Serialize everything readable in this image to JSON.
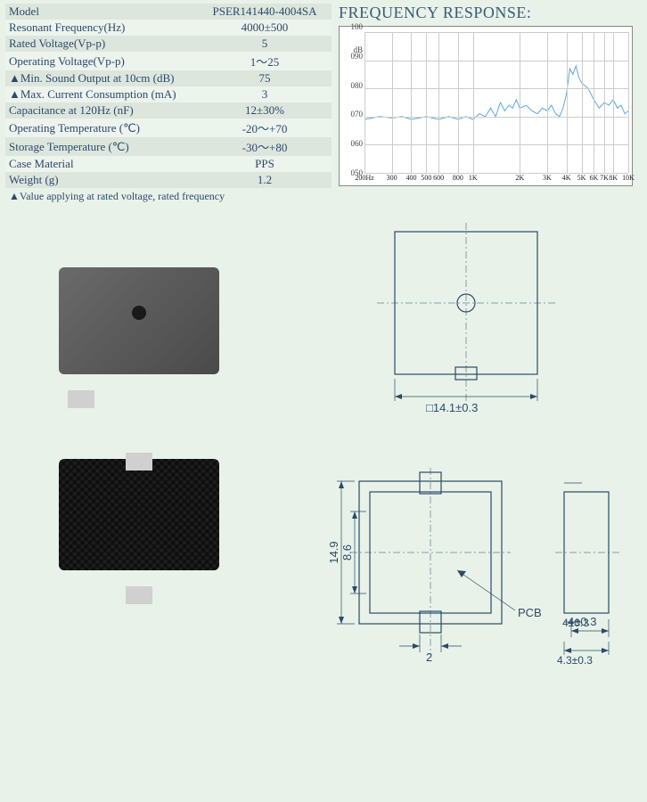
{
  "specs": {
    "rows": [
      {
        "label": "Model",
        "value": "PSER141440-4004SA"
      },
      {
        "label": "Resonant Frequency(Hz)",
        "value": "4000±500"
      },
      {
        "label": "Rated Voltage(Vp-p)",
        "value": "5"
      },
      {
        "label": "Operating Voltage(Vp-p)",
        "value": "1～25"
      },
      {
        "label": "▲Min. Sound Output at 10cm (dB)",
        "value": "75"
      },
      {
        "label": "▲Max. Current Consumption (mA)",
        "value": "3"
      },
      {
        "label": "Capacitance at 120Hz (nF)",
        "value": "12±30%"
      },
      {
        "label": "Operating Temperature (℃)",
        "value": "-20～+70"
      },
      {
        "label": "Storage Temperature (℃)",
        "value": "-30～+80"
      },
      {
        "label": "Case Material",
        "value": "PPS"
      },
      {
        "label": "Weight (g)",
        "value": "1.2"
      }
    ],
    "footnote": "▲Value applying at rated voltage, rated frequency"
  },
  "chart": {
    "title": "FREQUENCY RESPONSE:",
    "y_label": "dB",
    "y_min": 50,
    "y_max": 100,
    "y_ticks": [
      50,
      60,
      70,
      80,
      90,
      100
    ],
    "y_tick_labels": [
      "050",
      "060",
      "070",
      "080",
      "090",
      "100"
    ],
    "x_ticks_log": [
      200,
      300,
      400,
      500,
      600,
      800,
      1000,
      2000,
      3000,
      4000,
      5000,
      6000,
      7000,
      8000,
      10000
    ],
    "x_tick_labels": [
      "200Hz",
      "300",
      "400",
      "500",
      "600",
      "800",
      "1K",
      "2K",
      "3K",
      "4K",
      "5K",
      "6K",
      "7K",
      "8K",
      "10K"
    ],
    "line_color": "#5aa8d8",
    "background_color": "#ffffff",
    "data_points": [
      [
        200,
        69
      ],
      [
        250,
        70
      ],
      [
        300,
        69.5
      ],
      [
        350,
        70
      ],
      [
        400,
        69
      ],
      [
        450,
        69.5
      ],
      [
        500,
        70
      ],
      [
        600,
        69
      ],
      [
        700,
        70
      ],
      [
        800,
        69
      ],
      [
        900,
        70
      ],
      [
        1000,
        69
      ],
      [
        1100,
        71
      ],
      [
        1200,
        70
      ],
      [
        1300,
        73
      ],
      [
        1400,
        70
      ],
      [
        1500,
        75
      ],
      [
        1600,
        72
      ],
      [
        1700,
        74
      ],
      [
        1800,
        73
      ],
      [
        1900,
        76
      ],
      [
        2000,
        73
      ],
      [
        2200,
        74
      ],
      [
        2400,
        72
      ],
      [
        2600,
        71
      ],
      [
        2800,
        73
      ],
      [
        3000,
        72
      ],
      [
        3200,
        74
      ],
      [
        3400,
        71
      ],
      [
        3600,
        70
      ],
      [
        3800,
        73
      ],
      [
        4000,
        78
      ],
      [
        4200,
        87
      ],
      [
        4400,
        85
      ],
      [
        4600,
        88
      ],
      [
        4800,
        84
      ],
      [
        5000,
        82
      ],
      [
        5500,
        80
      ],
      [
        6000,
        76
      ],
      [
        6500,
        73
      ],
      [
        7000,
        75
      ],
      [
        7500,
        74
      ],
      [
        8000,
        76
      ],
      [
        8500,
        73
      ],
      [
        9000,
        74
      ],
      [
        9500,
        71
      ],
      [
        10000,
        72
      ]
    ]
  },
  "drawings": {
    "top_view": {
      "dim_width": "14.1±0.3",
      "square_symbol": "□"
    },
    "bottom_view": {
      "dim_height_outer": "14.9",
      "dim_height_inner": "8.6",
      "dim_tab_width": "2",
      "dim_side_small": "4±0.3",
      "dim_side_large": "4.3±0.3",
      "pcb_label": "PCB"
    }
  }
}
